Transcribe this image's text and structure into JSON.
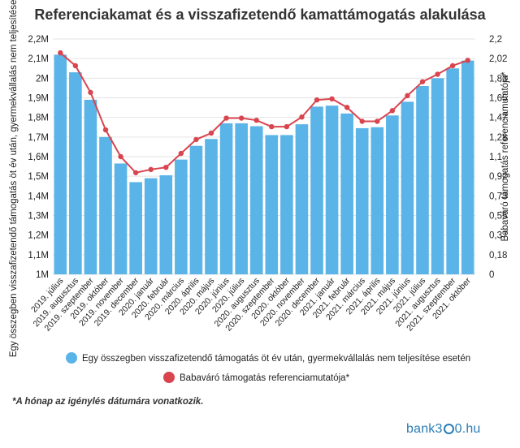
{
  "chart_data": {
    "type": "bar",
    "title": "Referenciakamat és a visszafizetendő kamattámogatás alakulása",
    "ylabel_left": "Egy összegben visszafizetendő támogatás öt év után, gyermekvállalás nem teljesítése esetén",
    "ylabel_right": "Babaváró támogatás referenciamutatója*",
    "y_left_ticks": [
      "1M",
      "1,1M",
      "1,2M",
      "1,3M",
      "1,4M",
      "1,5M",
      "1,6M",
      "1,7M",
      "1,8M",
      "1,9M",
      "2M",
      "2,1M",
      "2,2M"
    ],
    "y_right_ticks": [
      "0",
      "0,18",
      "0,37",
      "0,55",
      "0,73",
      "0,92",
      "1,1",
      "1,28",
      "1,47",
      "1,65",
      "1,83",
      "2,02",
      "2,2"
    ],
    "ylim_left": [
      1000000,
      2200000
    ],
    "ylim_right": [
      0,
      2.2
    ],
    "categories": [
      "2019. július",
      "2019. augusztus",
      "2019. szeptember",
      "2019. október",
      "2019. november",
      "2019. december",
      "2020. január",
      "2020. február",
      "2020. március",
      "2020. április",
      "2020. május",
      "2020. június",
      "2020. július",
      "2020. augusztus",
      "2020. szeptember",
      "2020. október",
      "2020. november",
      "2020. december",
      "2021. január",
      "2021. február",
      "2021. március",
      "2021. április",
      "2021. május",
      "2021. június",
      "2021. július",
      "2021. augusztus",
      "2021. szeptember",
      "2021. október"
    ],
    "series": [
      {
        "name": "Egy összegben visszafizetendő támogatás öt év után, gyermekvállalás nem teljesítése esetén",
        "type": "bar",
        "axis": "left",
        "color": "#5ab4e8",
        "values": [
          2120000,
          2030000,
          1890000,
          1700000,
          1565000,
          1470000,
          1490000,
          1505000,
          1585000,
          1655000,
          1690000,
          1770000,
          1770000,
          1755000,
          1710000,
          1710000,
          1765000,
          1855000,
          1860000,
          1820000,
          1745000,
          1750000,
          1810000,
          1880000,
          1960000,
          2000000,
          2050000,
          2090000
        ]
      },
      {
        "name": "Babaváró támogatás referenciamutatója*",
        "type": "line",
        "axis": "right",
        "color": "#d9454f",
        "values": [
          2.07,
          1.95,
          1.7,
          1.35,
          1.1,
          0.95,
          0.98,
          1.0,
          1.13,
          1.26,
          1.32,
          1.46,
          1.46,
          1.44,
          1.38,
          1.38,
          1.47,
          1.63,
          1.64,
          1.56,
          1.43,
          1.43,
          1.53,
          1.67,
          1.8,
          1.87,
          1.95,
          2.0
        ]
      }
    ],
    "grid": true,
    "legend_position": "bottom"
  },
  "footnote": "*A hónap az igénylés dátumára vonatkozik.",
  "logo": {
    "before": "bank3",
    "after": "0.hu"
  }
}
